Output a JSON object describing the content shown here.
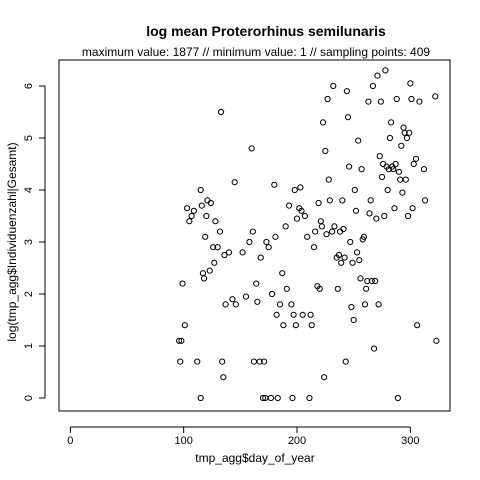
{
  "chart_data": {
    "type": "scatter",
    "title": "log mean Proterorhinus semilunaris",
    "subtitle": "maximum value: 1877  //  minimum value: 1  // sampling points: 409",
    "xlabel": "tmp_agg$day_of_year",
    "ylabel": "log(tmp_agg$Individuenzahl|Gesamt)",
    "xlim": [
      -10,
      335
    ],
    "ylim": [
      -0.25,
      6.5
    ],
    "xticks": [
      0,
      100,
      200,
      300
    ],
    "yticks": [
      0,
      1,
      2,
      3,
      4,
      5,
      6
    ],
    "grid": false,
    "marker": "open-circle",
    "points": [
      [
        96,
        1.1
      ],
      [
        98,
        1.1
      ],
      [
        97,
        0.7
      ],
      [
        99,
        2.2
      ],
      [
        101,
        1.4
      ],
      [
        103,
        3.65
      ],
      [
        105,
        3.4
      ],
      [
        107,
        3.5
      ],
      [
        109,
        3.6
      ],
      [
        112,
        0.7
      ],
      [
        115,
        0
      ],
      [
        115,
        4.0
      ],
      [
        116,
        3.7
      ],
      [
        117,
        2.4
      ],
      [
        118,
        2.3
      ],
      [
        119,
        3.1
      ],
      [
        120,
        3.5
      ],
      [
        121,
        3.8
      ],
      [
        123,
        2.45
      ],
      [
        124,
        3.75
      ],
      [
        126,
        2.9
      ],
      [
        127,
        2.6
      ],
      [
        128,
        3.4
      ],
      [
        130,
        2.9
      ],
      [
        132,
        3.2
      ],
      [
        133,
        5.5
      ],
      [
        134,
        0.7
      ],
      [
        135,
        0.4
      ],
      [
        136,
        2.75
      ],
      [
        137,
        1.8
      ],
      [
        140,
        2.8
      ],
      [
        143,
        1.9
      ],
      [
        145,
        4.15
      ],
      [
        146,
        1.8
      ],
      [
        152,
        2.8
      ],
      [
        155,
        1.95
      ],
      [
        158,
        3.0
      ],
      [
        160,
        4.8
      ],
      [
        161,
        3.2
      ],
      [
        162,
        0.7
      ],
      [
        164,
        2.2
      ],
      [
        165,
        1.85
      ],
      [
        167,
        0.7
      ],
      [
        168,
        2.7
      ],
      [
        170,
        0
      ],
      [
        171,
        0.7
      ],
      [
        172,
        0
      ],
      [
        173,
        3.0
      ],
      [
        175,
        2.9
      ],
      [
        177,
        0
      ],
      [
        178,
        2.0
      ],
      [
        180,
        4.1
      ],
      [
        181,
        3.1
      ],
      [
        182,
        1.6
      ],
      [
        183,
        0
      ],
      [
        185,
        1.8
      ],
      [
        187,
        2.4
      ],
      [
        188,
        1.4
      ],
      [
        190,
        3.3
      ],
      [
        191,
        2.1
      ],
      [
        193,
        3.7
      ],
      [
        195,
        1.8
      ],
      [
        196,
        0
      ],
      [
        197,
        1.6
      ],
      [
        198,
        4.0
      ],
      [
        199,
        1.4
      ],
      [
        200,
        3.45
      ],
      [
        202,
        3.65
      ],
      [
        203,
        4.05
      ],
      [
        204,
        3.6
      ],
      [
        205,
        1.6
      ],
      [
        207,
        3.5
      ],
      [
        209,
        3.1
      ],
      [
        211,
        0
      ],
      [
        212,
        1.6
      ],
      [
        213,
        1.4
      ],
      [
        215,
        2.9
      ],
      [
        216,
        3.2
      ],
      [
        218,
        2.15
      ],
      [
        219,
        3.75
      ],
      [
        220,
        2.1
      ],
      [
        221,
        3.4
      ],
      [
        222,
        3.3
      ],
      [
        223,
        5.3
      ],
      [
        224,
        0.4
      ],
      [
        225,
        4.75
      ],
      [
        226,
        3.15
      ],
      [
        227,
        5.75
      ],
      [
        228,
        4.2
      ],
      [
        229,
        3.8
      ],
      [
        231,
        3.2
      ],
      [
        232,
        6.0
      ],
      [
        233,
        3.3
      ],
      [
        235,
        2.7
      ],
      [
        236,
        2.1
      ],
      [
        237,
        2.75
      ],
      [
        238,
        3.2
      ],
      [
        239,
        2.6
      ],
      [
        240,
        3.8
      ],
      [
        241,
        3.25
      ],
      [
        242,
        2.7
      ],
      [
        243,
        0.7
      ],
      [
        244,
        5.9
      ],
      [
        245,
        5.4
      ],
      [
        246,
        4.45
      ],
      [
        247,
        3.0
      ],
      [
        248,
        1.75
      ],
      [
        249,
        2.6
      ],
      [
        250,
        1.5
      ],
      [
        251,
        4.0
      ],
      [
        252,
        3.6
      ],
      [
        253,
        2.8
      ],
      [
        254,
        4.95
      ],
      [
        255,
        2.65
      ],
      [
        256,
        2.3
      ],
      [
        257,
        4.4
      ],
      [
        258,
        3.05
      ],
      [
        259,
        3.1
      ],
      [
        260,
        1.8
      ],
      [
        261,
        2.1
      ],
      [
        262,
        2.25
      ],
      [
        263,
        5.7
      ],
      [
        264,
        3.55
      ],
      [
        265,
        3.8
      ],
      [
        266,
        2.25
      ],
      [
        267,
        6.0
      ],
      [
        268,
        0.95
      ],
      [
        269,
        2.25
      ],
      [
        270,
        3.45
      ],
      [
        271,
        6.2
      ],
      [
        272,
        1.8
      ],
      [
        273,
        4.65
      ],
      [
        274,
        5.7
      ],
      [
        275,
        4.25
      ],
      [
        276,
        4.5
      ],
      [
        277,
        3.5
      ],
      [
        278,
        6.3
      ],
      [
        279,
        4.45
      ],
      [
        280,
        4.0
      ],
      [
        281,
        4.4
      ],
      [
        282,
        5.0
      ],
      [
        283,
        5.3
      ],
      [
        284,
        4.45
      ],
      [
        285,
        4.4
      ],
      [
        286,
        3.65
      ],
      [
        287,
        4.5
      ],
      [
        288,
        5.75
      ],
      [
        289,
        0
      ],
      [
        290,
        4.35
      ],
      [
        291,
        4.2
      ],
      [
        292,
        4.85
      ],
      [
        293,
        3.95
      ],
      [
        294,
        5.2
      ],
      [
        295,
        5.1
      ],
      [
        296,
        4.2
      ],
      [
        297,
        5.0
      ],
      [
        298,
        3.5
      ],
      [
        299,
        5.1
      ],
      [
        300,
        6.05
      ],
      [
        301,
        5.75
      ],
      [
        302,
        3.65
      ],
      [
        303,
        4.5
      ],
      [
        305,
        4.6
      ],
      [
        306,
        1.4
      ],
      [
        308,
        5.7
      ],
      [
        312,
        4.4
      ],
      [
        313,
        3.8
      ],
      [
        322,
        5.8
      ],
      [
        323,
        1.1
      ]
    ]
  }
}
